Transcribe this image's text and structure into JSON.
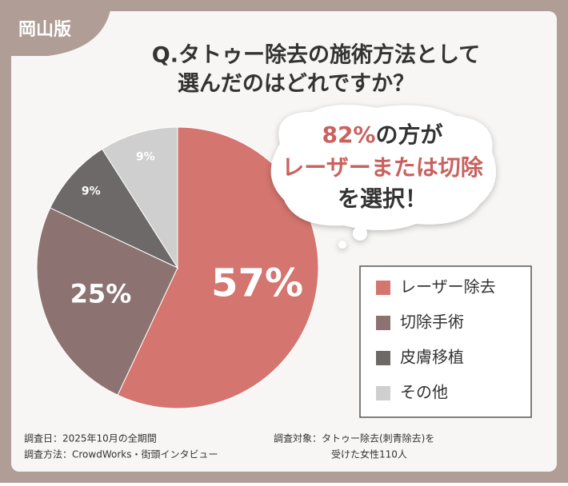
{
  "badge": "岡山版",
  "chart_data": {
    "type": "pie",
    "title_lines": [
      "Q.タトゥー除去の施術方法として",
      "選んだのはどれですか？"
    ],
    "categories": [
      "レーザー除去",
      "切除手術",
      "皮膚移植",
      "その他"
    ],
    "values": [
      57,
      25,
      9,
      9
    ],
    "value_labels": [
      "57%",
      "25%",
      "9%",
      "9%"
    ],
    "colors": [
      "#d4756f",
      "#8c7372",
      "#6d6968",
      "#cfcfcf"
    ],
    "legend": "right",
    "callout": {
      "highlight": "82%",
      "line1_rest": "の方が",
      "line2": "レーザーまたは切除",
      "line3": "を選択！"
    }
  },
  "footnotes": {
    "date": "調査日：2025年10月の全期間",
    "method": "調査方法：CrowdWorks・街頭インタビュー",
    "target_line1": "調査対象：タトゥー除去(刺青除去)を",
    "target_line2": "受けた女性110人"
  }
}
